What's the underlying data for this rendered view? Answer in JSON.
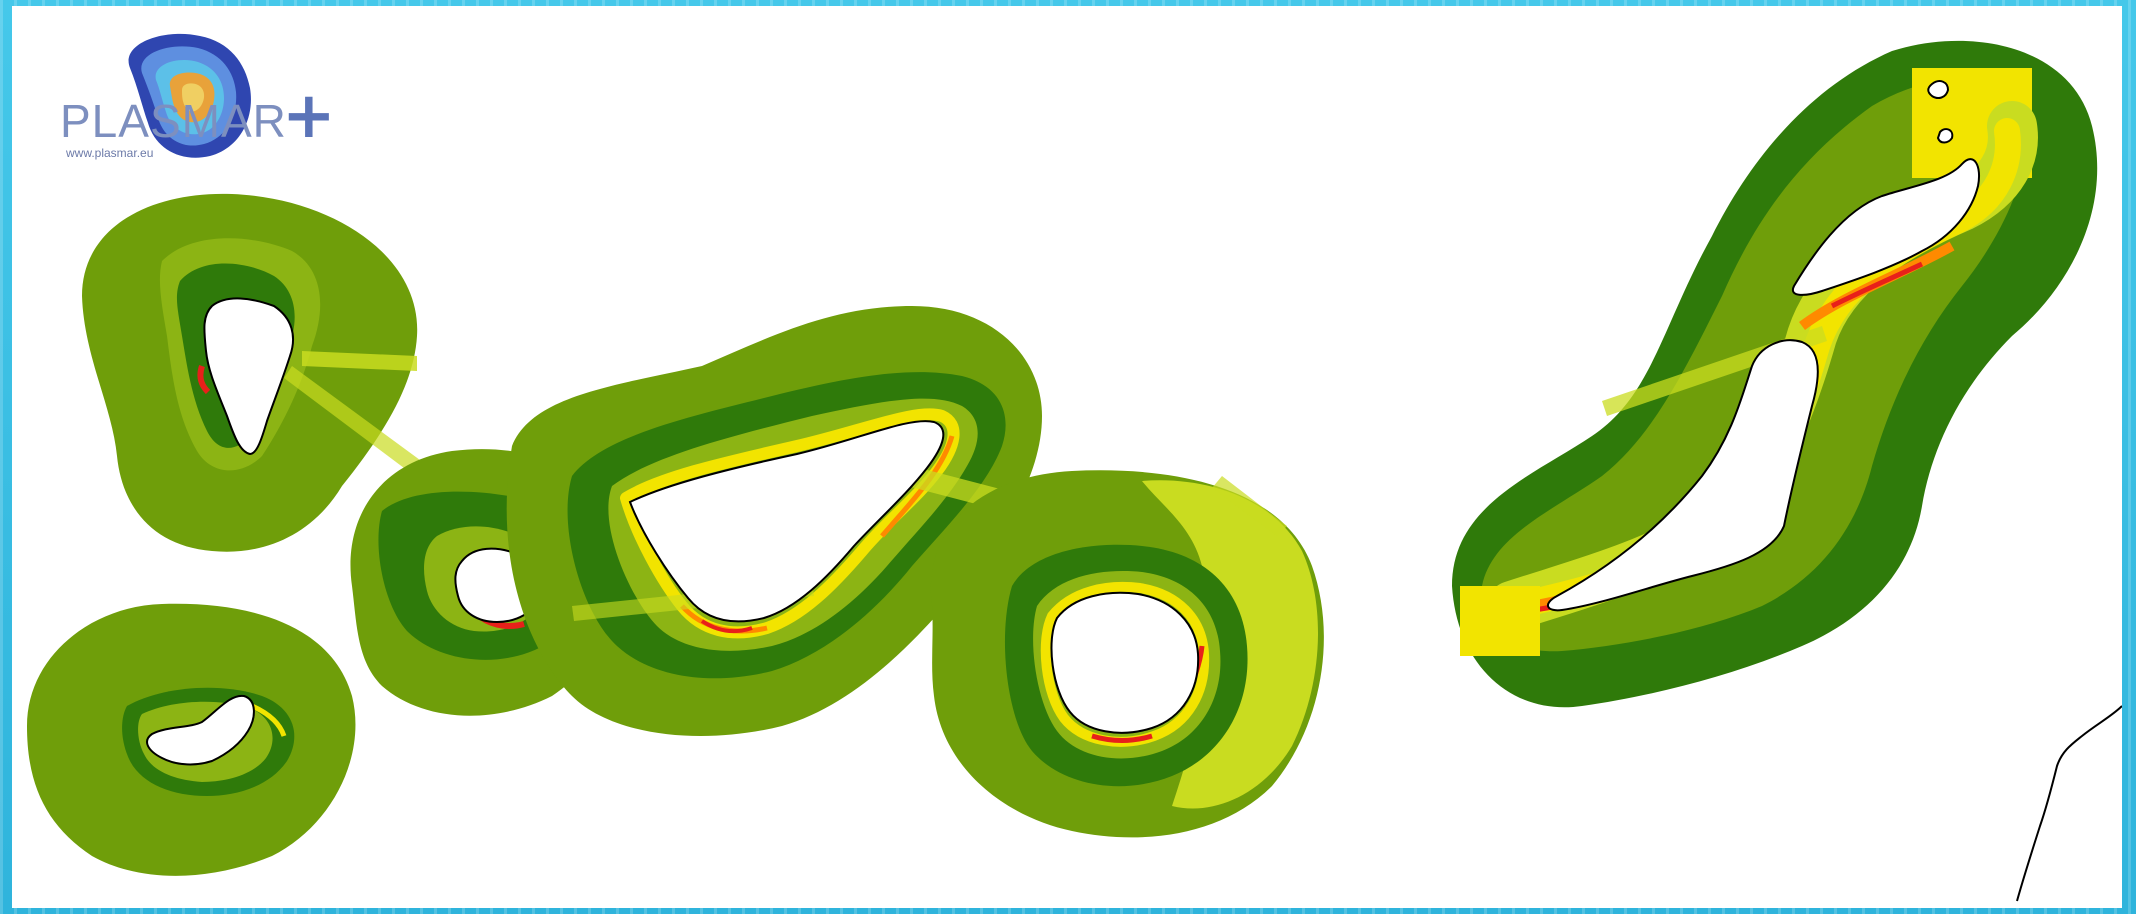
{
  "logo": {
    "wordmark": "PLASMAR",
    "plus": "+",
    "url": "www.plasmar.eu"
  },
  "colors": {
    "sea_frame": "#3ac0e4",
    "map_background": "#ffffff",
    "buffer_outer": "#6f9e0a",
    "buffer_mid": "#8cb414",
    "buffer_dark": "#2f7a0a",
    "density_low": "#c9dc20",
    "density_mid": "#f2e400",
    "density_high": "#ff8a00",
    "density_max": "#e8201a",
    "land": "#ffffff",
    "coastline": "#000000",
    "logo_text": "#7d8fbf"
  },
  "map_layers": [
    "la-palma",
    "el-hierro",
    "la-gomera",
    "tenerife",
    "gran-canaria",
    "lanzarote",
    "fuerteventura",
    "african-coastline"
  ]
}
